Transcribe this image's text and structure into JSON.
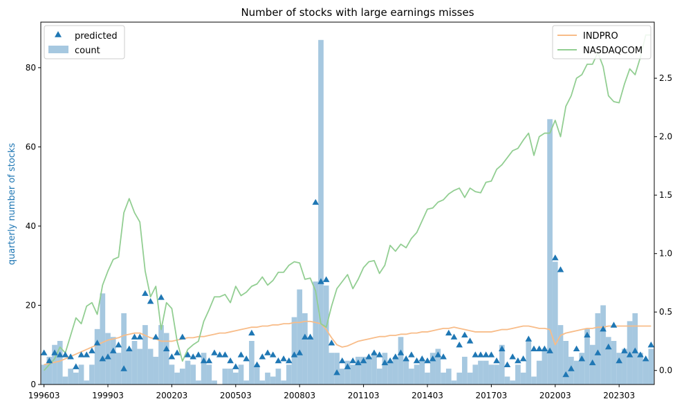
{
  "chart_data": {
    "type": "bar+scatter+line",
    "title": "Number of stocks with large earnings misses",
    "xlabel": "",
    "ylabel": "quarterly number of stocks",
    "y2label": "",
    "ylim": [
      0,
      91.5
    ],
    "y2lim": [
      -0.12,
      2.98
    ],
    "left_yticks": [
      0,
      20,
      40,
      60,
      80
    ],
    "right_yticks": [
      0.0,
      0.5,
      1.0,
      1.5,
      2.0,
      2.5
    ],
    "right_ytick_labels": [
      "0.0",
      "0.5",
      "1.0",
      "1.5",
      "2.0",
      "2.5"
    ],
    "xtick_labels": [
      "199603",
      "199903",
      "200203",
      "200503",
      "200803",
      "201103",
      "201403",
      "201703",
      "202003",
      "202303"
    ],
    "start_quarter": "199603",
    "legend_left": {
      "position": "top-left",
      "entries": [
        "predicted",
        "count"
      ]
    },
    "legend_right": {
      "position": "top-right",
      "entries": [
        "INDPRO",
        "NASDAQCOM"
      ]
    },
    "colors": {
      "count": "#a6c8e0",
      "predicted": "#1f77b4",
      "INDPRO": "#f8bc88",
      "NASDAQCOM": "#92ce92"
    },
    "series": [
      {
        "name": "count",
        "axis": "left",
        "values": [
          5,
          7,
          10,
          11,
          2,
          4,
          3,
          5,
          1,
          5,
          14,
          23,
          13,
          12,
          8,
          18,
          9,
          11,
          9,
          15,
          9,
          7,
          15,
          13,
          5,
          3,
          4,
          6,
          5,
          1,
          8,
          5,
          1,
          0,
          4,
          4,
          3,
          5,
          1,
          11,
          5,
          1,
          3,
          2,
          4,
          1,
          5,
          17,
          24,
          18,
          12,
          26,
          87,
          25,
          8,
          8,
          4,
          6,
          5,
          7,
          7,
          7,
          8,
          4,
          8,
          6,
          7,
          12,
          6,
          4,
          5,
          6,
          3,
          8,
          9,
          3,
          4,
          1,
          3,
          7,
          3,
          5,
          6,
          6,
          5,
          5,
          10,
          2,
          1,
          5,
          3,
          11,
          2,
          6,
          9,
          67,
          31,
          15,
          11,
          7,
          6,
          8,
          14,
          10,
          18,
          20,
          12,
          11,
          8,
          9,
          16,
          18,
          8,
          6,
          9
        ]
      },
      {
        "name": "predicted",
        "axis": "left",
        "values": [
          8,
          6,
          8,
          7.5,
          7.5,
          7,
          4.5,
          7.5,
          7.5,
          8.5,
          10.5,
          6.5,
          7,
          8.5,
          10,
          4,
          9,
          12,
          12,
          23,
          21,
          12,
          22,
          9,
          7,
          8,
          12,
          7.5,
          7,
          7.5,
          6,
          6,
          8,
          7.5,
          7.5,
          6,
          4.5,
          7.5,
          6.5,
          13,
          5,
          7,
          8,
          7.5,
          6,
          6.5,
          6,
          7.5,
          8,
          12,
          12,
          46,
          26,
          26.5,
          10.5,
          3,
          6,
          4.5,
          6,
          5.5,
          6,
          7,
          8,
          7.5,
          5.5,
          6,
          7,
          8,
          6.5,
          7.5,
          6,
          6.5,
          6,
          6.5,
          7.5,
          7,
          13,
          12,
          10,
          12.5,
          11,
          7.5,
          7.5,
          7.5,
          7.5,
          6,
          9,
          5,
          7,
          6,
          6.5,
          11.5,
          9,
          9,
          9,
          8.5,
          32,
          29,
          2.5,
          4,
          9,
          6.5,
          12.5,
          5.5,
          8,
          14,
          9.5,
          15,
          6,
          8.5,
          7.5,
          8.5,
          7.5,
          6.5,
          10
        ]
      },
      {
        "name": "INDPRO",
        "axis": "right",
        "values": [
          0.05,
          0.06,
          0.07,
          0.08,
          0.1,
          0.12,
          0.14,
          0.16,
          0.18,
          0.2,
          0.22,
          0.24,
          0.26,
          0.27,
          0.28,
          0.3,
          0.31,
          0.32,
          0.32,
          0.3,
          0.28,
          0.27,
          0.25,
          0.25,
          0.25,
          0.26,
          0.27,
          0.28,
          0.28,
          0.29,
          0.29,
          0.3,
          0.31,
          0.32,
          0.32,
          0.33,
          0.34,
          0.35,
          0.36,
          0.37,
          0.37,
          0.38,
          0.38,
          0.39,
          0.39,
          0.4,
          0.4,
          0.41,
          0.41,
          0.42,
          0.42,
          0.41,
          0.4,
          0.35,
          0.28,
          0.22,
          0.2,
          0.21,
          0.23,
          0.25,
          0.26,
          0.27,
          0.28,
          0.29,
          0.29,
          0.3,
          0.3,
          0.31,
          0.31,
          0.32,
          0.32,
          0.33,
          0.33,
          0.34,
          0.35,
          0.36,
          0.36,
          0.37,
          0.36,
          0.35,
          0.34,
          0.33,
          0.33,
          0.33,
          0.33,
          0.34,
          0.35,
          0.35,
          0.36,
          0.37,
          0.38,
          0.38,
          0.37,
          0.36,
          0.36,
          0.35,
          0.22,
          0.3,
          0.32,
          0.33,
          0.34,
          0.35,
          0.36,
          0.36,
          0.37,
          0.37,
          0.38,
          0.38,
          0.38,
          0.38,
          0.38,
          0.38,
          0.38,
          0.38,
          0.38
        ]
      },
      {
        "name": "NASDAQCOM",
        "axis": "right",
        "values": [
          0.0,
          0.05,
          0.1,
          0.2,
          0.15,
          0.3,
          0.45,
          0.4,
          0.55,
          0.58,
          0.48,
          0.73,
          0.85,
          0.95,
          0.97,
          1.35,
          1.47,
          1.35,
          1.27,
          0.85,
          0.63,
          0.72,
          0.35,
          0.58,
          0.53,
          0.25,
          0.08,
          0.18,
          0.22,
          0.25,
          0.42,
          0.52,
          0.63,
          0.63,
          0.65,
          0.58,
          0.72,
          0.64,
          0.67,
          0.72,
          0.74,
          0.8,
          0.73,
          0.77,
          0.84,
          0.84,
          0.9,
          0.93,
          0.92,
          0.78,
          0.79,
          0.68,
          0.4,
          0.37,
          0.55,
          0.7,
          0.76,
          0.82,
          0.7,
          0.78,
          0.88,
          0.93,
          0.94,
          0.83,
          0.9,
          1.07,
          1.02,
          1.08,
          1.05,
          1.13,
          1.18,
          1.28,
          1.38,
          1.39,
          1.44,
          1.46,
          1.51,
          1.54,
          1.56,
          1.48,
          1.56,
          1.53,
          1.52,
          1.61,
          1.62,
          1.72,
          1.76,
          1.82,
          1.88,
          1.9,
          1.97,
          2.03,
          1.84,
          2.0,
          2.03,
          2.03,
          2.14,
          2.0,
          2.26,
          2.35,
          2.5,
          2.53,
          2.62,
          2.62,
          2.72,
          2.6,
          2.35,
          2.3,
          2.29,
          2.45,
          2.58,
          2.53,
          2.68,
          2.87,
          2.87
        ]
      }
    ]
  }
}
